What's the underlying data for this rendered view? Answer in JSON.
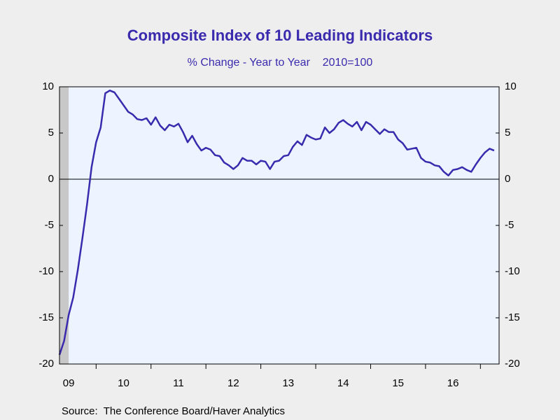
{
  "chart_data": {
    "type": "line",
    "title": "Composite Index of 10 Leading Indicators",
    "subtitle": "% Change - Year to Year    2010=100",
    "source": "Source:  The Conference Board/Haver Analytics",
    "x": [
      2009.333,
      2009.417,
      2009.5,
      2009.583,
      2009.667,
      2009.75,
      2009.833,
      2009.917,
      2010.0,
      2010.083,
      2010.167,
      2010.25,
      2010.333,
      2010.417,
      2010.5,
      2010.583,
      2010.667,
      2010.75,
      2010.833,
      2010.917,
      2011.0,
      2011.083,
      2011.167,
      2011.25,
      2011.333,
      2011.417,
      2011.5,
      2011.583,
      2011.667,
      2011.75,
      2011.833,
      2011.917,
      2012.0,
      2012.083,
      2012.167,
      2012.25,
      2012.333,
      2012.417,
      2012.5,
      2012.583,
      2012.667,
      2012.75,
      2012.833,
      2012.917,
      2013.0,
      2013.083,
      2013.167,
      2013.25,
      2013.333,
      2013.417,
      2013.5,
      2013.583,
      2013.667,
      2013.75,
      2013.833,
      2013.917,
      2014.0,
      2014.083,
      2014.167,
      2014.25,
      2014.333,
      2014.417,
      2014.5,
      2014.583,
      2014.667,
      2014.75,
      2014.833,
      2014.917,
      2015.0,
      2015.083,
      2015.167,
      2015.25,
      2015.333,
      2015.417,
      2015.5,
      2015.583,
      2015.667,
      2015.75,
      2015.833,
      2015.917,
      2016.0,
      2016.083,
      2016.167,
      2016.25,
      2016.333,
      2016.417,
      2016.5,
      2016.583,
      2016.667,
      2016.75,
      2016.833,
      2016.917,
      2017.0,
      2017.083,
      2017.167,
      2017.25
    ],
    "series": [
      {
        "color": "#3a2aae",
        "values": [
          -19.0,
          -17.5,
          -14.7,
          -12.8,
          -9.8,
          -6.4,
          -2.8,
          1.3,
          4.0,
          5.6,
          9.3,
          9.6,
          9.4,
          8.7,
          8.0,
          7.3,
          7.0,
          6.5,
          6.4,
          6.6,
          5.9,
          6.7,
          5.8,
          5.3,
          5.9,
          5.7,
          6.0,
          5.1,
          4.0,
          4.7,
          3.8,
          3.1,
          3.4,
          3.2,
          2.6,
          2.5,
          1.8,
          1.5,
          1.1,
          1.5,
          2.3,
          2.0,
          2.0,
          1.6,
          2.0,
          1.9,
          1.1,
          1.9,
          2.0,
          2.5,
          2.6,
          3.5,
          4.1,
          3.7,
          4.8,
          4.5,
          4.3,
          4.4,
          5.6,
          5.0,
          5.4,
          6.1,
          6.4,
          6.0,
          5.7,
          6.2,
          5.3,
          6.2,
          5.9,
          5.4,
          4.9,
          5.4,
          5.1,
          5.1,
          4.3,
          3.9,
          3.2,
          3.3,
          3.4,
          2.3,
          1.9,
          1.8,
          1.5,
          1.4,
          0.8,
          0.4,
          1.0,
          1.1,
          1.3,
          1.0,
          0.8,
          1.6,
          2.3,
          2.9,
          3.3,
          3.1
        ]
      }
    ],
    "xlim": [
      2009.333,
      2017.34
    ],
    "xticks": [
      2010,
      2011,
      2012,
      2013,
      2014,
      2015,
      2016,
      2017
    ],
    "xlabels": [
      {
        "value": 2009.5,
        "label": "09"
      },
      {
        "value": 2010.5,
        "label": "10"
      },
      {
        "value": 2011.5,
        "label": "11"
      },
      {
        "value": 2012.5,
        "label": "12"
      },
      {
        "value": 2013.5,
        "label": "13"
      },
      {
        "value": 2014.5,
        "label": "14"
      },
      {
        "value": 2015.5,
        "label": "15"
      },
      {
        "value": 2016.5,
        "label": "16"
      }
    ],
    "ylim": [
      -20,
      10
    ],
    "yticks": [
      -20,
      -15,
      -10,
      -5,
      0,
      5,
      10
    ],
    "y2lim": [
      -20,
      10
    ],
    "y2ticks": [
      -20,
      -15,
      -10,
      -5,
      0,
      5,
      10
    ],
    "recession": [
      2009.333,
      2009.5
    ]
  }
}
